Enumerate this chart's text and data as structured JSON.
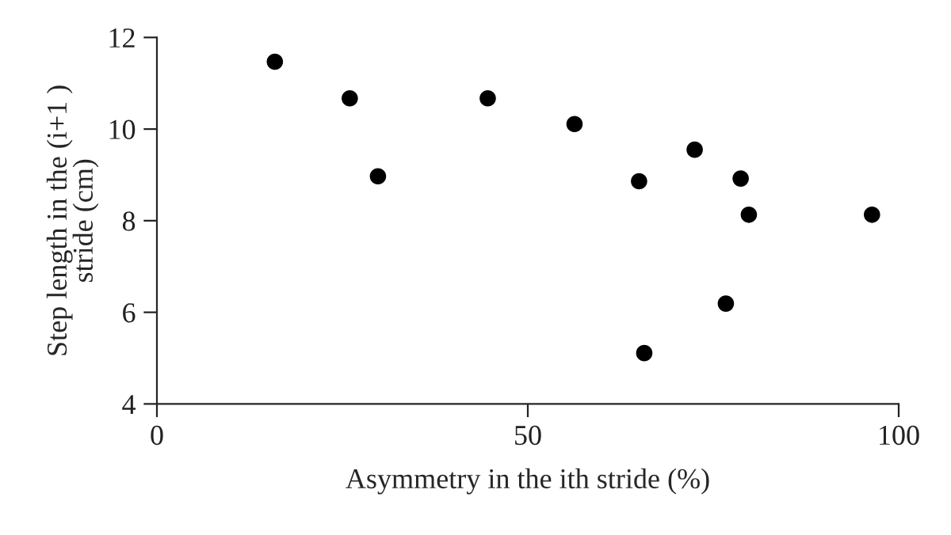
{
  "chart_data": {
    "type": "scatter",
    "xlabel": "Asymmetry in the ith stride (%)",
    "ylabel": "Step length in the (i+1 )\nstride (cm)",
    "x": [
      15.9,
      26.0,
      29.8,
      44.6,
      56.3,
      65.0,
      65.7,
      72.5,
      76.7,
      78.7,
      79.8,
      96.4
    ],
    "series": [
      {
        "color": "#000000",
        "values": [
          11.47,
          10.67,
          8.97,
          10.67,
          10.11,
          8.86,
          5.11,
          9.55,
          6.19,
          8.92,
          8.13,
          8.13
        ]
      }
    ],
    "xlim": [
      0,
      100
    ],
    "xticks": [
      0,
      50,
      100
    ],
    "ylim": [
      4,
      12
    ],
    "yticks": [
      4,
      6,
      8,
      10,
      12
    ],
    "grid": false,
    "legend": false,
    "marker": "circle"
  }
}
